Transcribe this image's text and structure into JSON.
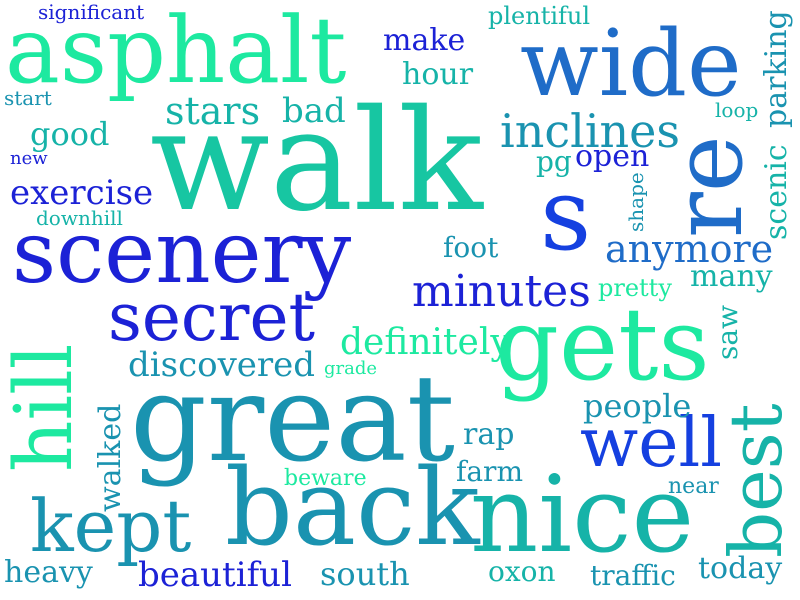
{
  "words": {
    "walk": "walk",
    "great": "great",
    "back": "back",
    "nice": "nice",
    "scenery": "scenery",
    "asphalt": "asphalt",
    "gets": "gets",
    "wide": "wide",
    "s": "s",
    "re": "re",
    "secret": "secret",
    "kept": "kept",
    "hill": "hill",
    "well": "well",
    "best": "best",
    "minutes": "minutes",
    "inclines": "inclines",
    "anymore": "anymore",
    "beautiful": "beautiful",
    "discovered": "discovered",
    "definitely": "definitely",
    "stars": "stars",
    "bad": "bad",
    "exercise": "exercise",
    "people": "people",
    "today": "today",
    "south": "south",
    "heavy": "heavy",
    "traffic": "traffic",
    "oxon": "oxon",
    "make": "make",
    "hour": "hour",
    "good": "good",
    "foot": "foot",
    "many": "many",
    "pretty": "pretty",
    "rap": "rap",
    "farm": "farm",
    "walked": "walked",
    "plentiful": "plentiful",
    "open": "open",
    "pg": "pg",
    "scenic": "scenic",
    "parking": "parking",
    "saw": "saw",
    "significant": "significant",
    "start": "start",
    "new": "new",
    "downhill": "downhill",
    "loop": "loop",
    "shape": "shape",
    "grade": "grade",
    "beware": "beware",
    "near": "near"
  },
  "colors": {
    "mint": "#1de9a0",
    "teal": "#16b3a8",
    "petrol": "#1a93b0",
    "sky": "#1f6cc8",
    "royal": "#1540e0",
    "navy": "#1c22d6",
    "sea": "#17c6a2"
  }
}
